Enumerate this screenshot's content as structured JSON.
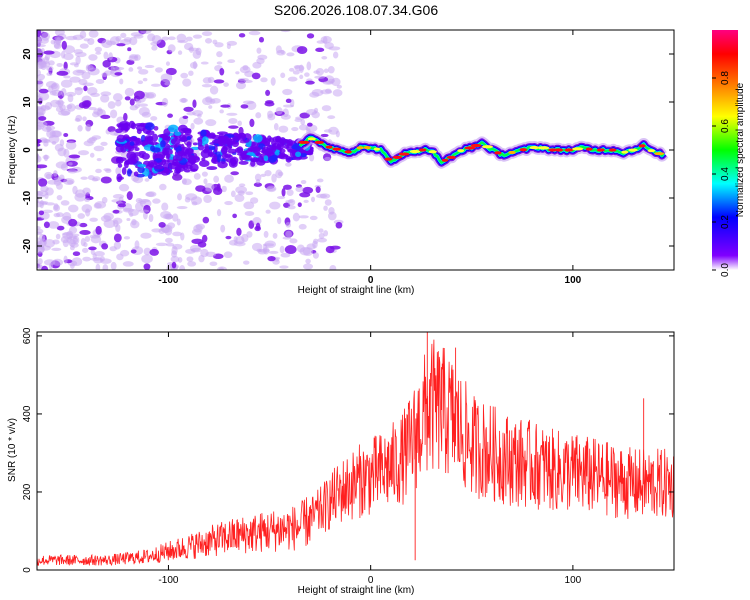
{
  "title": "S206.2026.108.07.34.G06",
  "chart_data": [
    {
      "type": "heatmap",
      "name": "spectrogram",
      "xlabel": "Height of straight line (km)",
      "ylabel": "Frequency (Hz)",
      "xlim": [
        -165,
        150
      ],
      "ylim": [
        -25,
        25
      ],
      "xticks": [
        -100,
        0,
        100
      ],
      "yticks": [
        20,
        10,
        0,
        -10,
        -20
      ],
      "colorbar": {
        "label": "Normalized spectral amplitude",
        "range": [
          0,
          1
        ],
        "ticks": [
          0.0,
          0.2,
          0.4,
          0.6,
          0.8
        ],
        "colormap": [
          "#ffffff",
          "#8000ff",
          "#0000ff",
          "#00ffff",
          "#00ff00",
          "#ffff00",
          "#ff8000",
          "#ff0000",
          "#ff0080"
        ]
      },
      "ridge": {
        "x": [
          -35,
          -30,
          -25,
          -20,
          -15,
          -10,
          -5,
          0,
          5,
          10,
          15,
          20,
          25,
          30,
          35,
          40,
          45,
          50,
          55,
          60,
          65,
          70,
          75,
          80,
          85,
          90,
          95,
          100,
          105,
          110,
          115,
          120,
          125,
          130,
          135,
          140,
          145
        ],
        "y": [
          1.0,
          2.5,
          1.5,
          0.5,
          0,
          -0.5,
          0.5,
          0.5,
          0,
          -2.5,
          -1.0,
          -0.5,
          0,
          0,
          -2.5,
          -1.5,
          0,
          0.5,
          1.5,
          0,
          -1.0,
          -0.5,
          0,
          0.5,
          0.5,
          0,
          0,
          0,
          0.5,
          0,
          0,
          0,
          -0.5,
          0,
          1.0,
          -0.5,
          -1.0
        ]
      }
    },
    {
      "type": "line",
      "name": "snr",
      "xlabel": "Height of straight line (km)",
      "ylabel": "SNR (10 * v/v)",
      "xlim": [
        -165,
        150
      ],
      "ylim": [
        0,
        610
      ],
      "xticks": [
        -100,
        0,
        100
      ],
      "yticks": [
        0,
        200,
        400,
        600
      ],
      "color": "#ff2020",
      "envelope": {
        "x": [
          -165,
          -130,
          -110,
          -90,
          -70,
          -50,
          -35,
          -25,
          -15,
          -5,
          5,
          15,
          20,
          25,
          30,
          35,
          40,
          50,
          60,
          70,
          80,
          90,
          100,
          110,
          120,
          130,
          140,
          150
        ],
        "y": [
          25,
          25,
          35,
          60,
          85,
          100,
          110,
          150,
          200,
          230,
          250,
          280,
          320,
          380,
          420,
          410,
          390,
          320,
          300,
          280,
          270,
          255,
          250,
          240,
          230,
          220,
          220,
          220
        ]
      },
      "spikes": [
        {
          "x": 28,
          "y": 610
        },
        {
          "x": 42,
          "y": 570
        },
        {
          "x": 22,
          "y": 25
        },
        {
          "x": 135,
          "y": 440
        },
        {
          "x": 35,
          "y": 520
        }
      ]
    }
  ]
}
